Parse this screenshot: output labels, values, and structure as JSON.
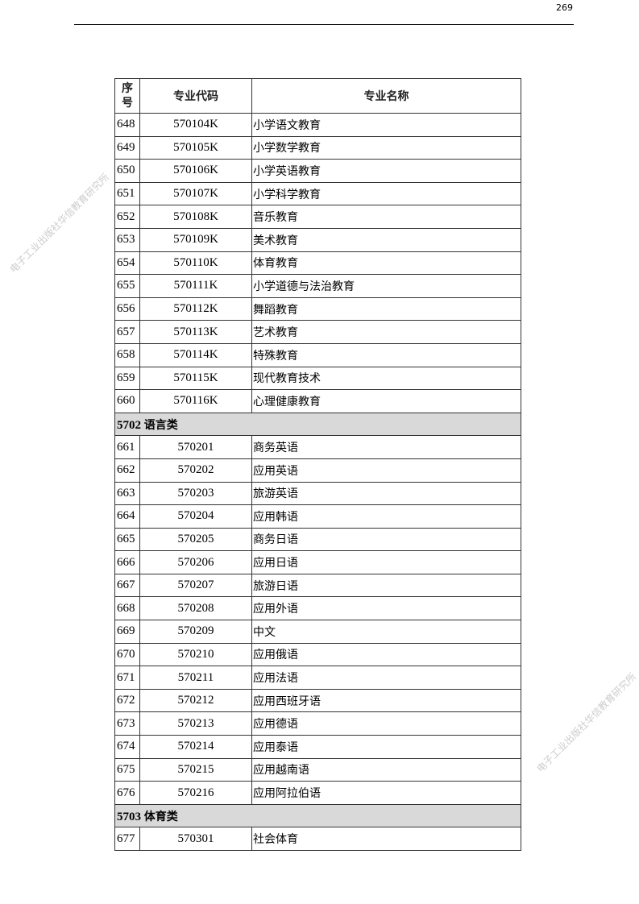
{
  "page_number": "269",
  "watermark": "电子工业出版社华信教育研究所",
  "table": {
    "headers": [
      "序号",
      "专业代码",
      "专业名称"
    ],
    "rows": [
      {
        "no": "648",
        "code": "570104K",
        "name": "小学语文教育"
      },
      {
        "no": "649",
        "code": "570105K",
        "name": "小学数学教育"
      },
      {
        "no": "650",
        "code": "570106K",
        "name": "小学英语教育"
      },
      {
        "no": "651",
        "code": "570107K",
        "name": "小学科学教育"
      },
      {
        "no": "652",
        "code": "570108K",
        "name": "音乐教育"
      },
      {
        "no": "653",
        "code": "570109K",
        "name": "美术教育"
      },
      {
        "no": "654",
        "code": "570110K",
        "name": "体育教育"
      },
      {
        "no": "655",
        "code": "570111K",
        "name": "小学道德与法治教育"
      },
      {
        "no": "656",
        "code": "570112K",
        "name": "舞蹈教育"
      },
      {
        "no": "657",
        "code": "570113K",
        "name": "艺术教育"
      },
      {
        "no": "658",
        "code": "570114K",
        "name": "特殊教育"
      },
      {
        "no": "659",
        "code": "570115K",
        "name": "现代教育技术"
      },
      {
        "no": "660",
        "code": "570116K",
        "name": "心理健康教育"
      },
      {
        "section": "5702",
        "section_name": "语言类"
      },
      {
        "no": "661",
        "code": "570201",
        "name": "商务英语"
      },
      {
        "no": "662",
        "code": "570202",
        "name": "应用英语"
      },
      {
        "no": "663",
        "code": "570203",
        "name": "旅游英语"
      },
      {
        "no": "664",
        "code": "570204",
        "name": "应用韩语"
      },
      {
        "no": "665",
        "code": "570205",
        "name": "商务日语"
      },
      {
        "no": "666",
        "code": "570206",
        "name": "应用日语"
      },
      {
        "no": "667",
        "code": "570207",
        "name": "旅游日语"
      },
      {
        "no": "668",
        "code": "570208",
        "name": "应用外语"
      },
      {
        "no": "669",
        "code": "570209",
        "name": "中文"
      },
      {
        "no": "670",
        "code": "570210",
        "name": "应用俄语"
      },
      {
        "no": "671",
        "code": "570211",
        "name": "应用法语"
      },
      {
        "no": "672",
        "code": "570212",
        "name": "应用西班牙语"
      },
      {
        "no": "673",
        "code": "570213",
        "name": "应用德语"
      },
      {
        "no": "674",
        "code": "570214",
        "name": "应用泰语"
      },
      {
        "no": "675",
        "code": "570215",
        "name": "应用越南语"
      },
      {
        "no": "676",
        "code": "570216",
        "name": "应用阿拉伯语"
      },
      {
        "section": "5703",
        "section_name": "体育类"
      },
      {
        "no": "677",
        "code": "570301",
        "name": "社会体育"
      }
    ]
  }
}
